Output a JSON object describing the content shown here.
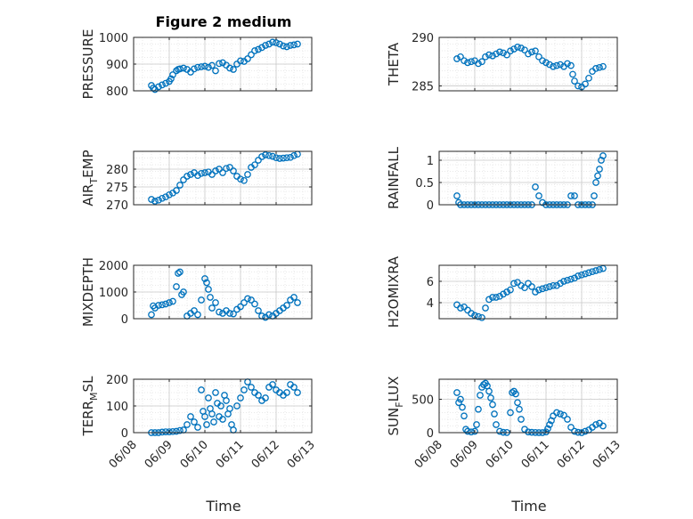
{
  "figure": {
    "title": "Figure 2 medium",
    "xlabel": "Time"
  },
  "colors": {
    "marker": "#0072BD",
    "axis": "#262626",
    "grid": "#c9c9c9"
  },
  "chart_data": [
    {
      "type": "scatter",
      "ylabel_main": "PRESSURE",
      "ylabel_sub": "",
      "ylabel_tail": "",
      "ylim": [
        800,
        1000
      ],
      "yticks": [
        "800",
        "900",
        "1000"
      ],
      "ytick_values": [
        800,
        900,
        1000
      ],
      "xlim": [
        0,
        5
      ],
      "x": [
        0.5,
        0.55,
        0.6,
        0.7,
        0.8,
        0.9,
        1.0,
        1.05,
        1.1,
        1.2,
        1.25,
        1.3,
        1.4,
        1.5,
        1.6,
        1.7,
        1.8,
        1.9,
        2.0,
        2.1,
        2.2,
        2.3,
        2.4,
        2.5,
        2.6,
        2.7,
        2.8,
        2.9,
        3.0,
        3.1,
        3.2,
        3.3,
        3.4,
        3.5,
        3.6,
        3.7,
        3.8,
        3.9,
        4.0,
        4.1,
        4.2,
        4.3,
        4.4,
        4.5,
        4.6
      ],
      "y": [
        820,
        810,
        805,
        815,
        822,
        828,
        835,
        845,
        860,
        875,
        880,
        882,
        885,
        880,
        870,
        882,
        888,
        890,
        892,
        888,
        895,
        875,
        902,
        905,
        896,
        885,
        880,
        900,
        912,
        910,
        920,
        935,
        950,
        955,
        962,
        970,
        975,
        982,
        980,
        975,
        968,
        965,
        970,
        972,
        975
      ]
    },
    {
      "type": "scatter",
      "ylabel_main": "THETA",
      "ylabel_sub": "",
      "ylabel_tail": "",
      "ylim": [
        284.5,
        290
      ],
      "yticks": [
        "285",
        "290"
      ],
      "ytick_values": [
        285,
        290
      ],
      "xlim": [
        0,
        5
      ],
      "x": [
        0.5,
        0.6,
        0.7,
        0.8,
        0.9,
        1.0,
        1.1,
        1.2,
        1.3,
        1.4,
        1.5,
        1.6,
        1.7,
        1.8,
        1.9,
        2.0,
        2.1,
        2.2,
        2.3,
        2.4,
        2.5,
        2.6,
        2.7,
        2.8,
        2.9,
        3.0,
        3.1,
        3.2,
        3.3,
        3.4,
        3.5,
        3.6,
        3.7,
        3.75,
        3.8,
        3.9,
        4.0,
        4.1,
        4.2,
        4.3,
        4.4,
        4.5,
        4.6
      ],
      "y": [
        287.8,
        288.0,
        287.6,
        287.4,
        287.5,
        287.6,
        287.3,
        287.5,
        288.0,
        288.2,
        288.1,
        288.3,
        288.5,
        288.4,
        288.2,
        288.6,
        288.8,
        289.0,
        288.9,
        288.7,
        288.3,
        288.5,
        288.6,
        288.0,
        287.6,
        287.4,
        287.2,
        287.0,
        287.1,
        287.2,
        287.0,
        287.3,
        287.1,
        286.2,
        285.5,
        285.0,
        284.9,
        285.2,
        285.8,
        286.5,
        286.8,
        286.9,
        287.0
      ]
    },
    {
      "type": "scatter",
      "ylabel_main": "AIR",
      "ylabel_sub": "T",
      "ylabel_tail": "EMP",
      "ylim": [
        270,
        285
      ],
      "yticks": [
        "270",
        "275",
        "280"
      ],
      "ytick_values": [
        270,
        275,
        280
      ],
      "xlim": [
        0,
        5
      ],
      "x": [
        0.5,
        0.6,
        0.7,
        0.8,
        0.9,
        1.0,
        1.1,
        1.2,
        1.3,
        1.4,
        1.5,
        1.6,
        1.7,
        1.8,
        1.9,
        2.0,
        2.1,
        2.2,
        2.3,
        2.4,
        2.5,
        2.6,
        2.7,
        2.8,
        2.9,
        3.0,
        3.1,
        3.2,
        3.3,
        3.4,
        3.5,
        3.6,
        3.7,
        3.8,
        3.9,
        4.0,
        4.1,
        4.2,
        4.3,
        4.4,
        4.5,
        4.6
      ],
      "y": [
        271.5,
        271.0,
        271.3,
        271.8,
        272.2,
        272.8,
        273.3,
        274.0,
        275.5,
        277.0,
        278.0,
        278.5,
        279.0,
        278.2,
        278.8,
        279.0,
        279.2,
        278.5,
        279.5,
        280.0,
        279.0,
        280.2,
        280.5,
        279.5,
        278.0,
        277.2,
        276.8,
        278.5,
        280.5,
        281.2,
        282.5,
        283.5,
        284.0,
        283.8,
        283.6,
        283.2,
        283.0,
        283.1,
        283.2,
        283.3,
        283.8,
        284.2
      ]
    },
    {
      "type": "scatter",
      "ylabel_main": "RAINFALL",
      "ylabel_sub": "",
      "ylabel_tail": "",
      "ylim": [
        0,
        1.2
      ],
      "yticks": [
        "0",
        "0.5",
        "1"
      ],
      "ytick_values": [
        0,
        0.5,
        1
      ],
      "xlim": [
        0,
        5
      ],
      "x": [
        0.5,
        0.55,
        0.6,
        0.7,
        0.8,
        0.9,
        1.0,
        1.1,
        1.2,
        1.3,
        1.4,
        1.5,
        1.6,
        1.7,
        1.8,
        1.9,
        2.0,
        2.1,
        2.2,
        2.3,
        2.4,
        2.5,
        2.6,
        2.7,
        2.8,
        2.9,
        3.0,
        3.1,
        3.2,
        3.3,
        3.4,
        3.5,
        3.6,
        3.7,
        3.8,
        3.9,
        4.0,
        4.1,
        4.2,
        4.3,
        4.35,
        4.4,
        4.45,
        4.5,
        4.55,
        4.6
      ],
      "y": [
        0.2,
        0.05,
        0,
        0,
        0,
        0,
        0,
        0,
        0,
        0,
        0,
        0,
        0,
        0,
        0,
        0,
        0,
        0,
        0,
        0,
        0,
        0,
        0,
        0.4,
        0.2,
        0.05,
        0,
        0,
        0,
        0,
        0,
        0,
        0,
        0.2,
        0.2,
        0,
        0,
        0,
        0,
        0,
        0.2,
        0.5,
        0.65,
        0.8,
        1.0,
        1.1
      ]
    },
    {
      "type": "scatter",
      "ylabel_main": "MIXDEPTH",
      "ylabel_sub": "",
      "ylabel_tail": "",
      "ylim": [
        0,
        2000
      ],
      "yticks": [
        "0",
        "1000",
        "2000"
      ],
      "ytick_values": [
        0,
        1000,
        2000
      ],
      "xlim": [
        0,
        5
      ],
      "x": [
        0.5,
        0.55,
        0.6,
        0.7,
        0.8,
        0.9,
        1.0,
        1.1,
        1.2,
        1.25,
        1.3,
        1.35,
        1.4,
        1.5,
        1.6,
        1.7,
        1.8,
        1.9,
        2.0,
        2.05,
        2.1,
        2.15,
        2.2,
        2.3,
        2.4,
        2.5,
        2.6,
        2.7,
        2.8,
        2.9,
        3.0,
        3.1,
        3.2,
        3.3,
        3.4,
        3.5,
        3.6,
        3.7,
        3.8,
        3.9,
        4.0,
        4.1,
        4.2,
        4.3,
        4.4,
        4.5,
        4.6
      ],
      "y": [
        150,
        480,
        400,
        500,
        520,
        550,
        600,
        650,
        1200,
        1700,
        1750,
        900,
        1000,
        100,
        200,
        300,
        150,
        700,
        1500,
        1350,
        1100,
        800,
        400,
        600,
        250,
        200,
        300,
        200,
        180,
        350,
        450,
        600,
        750,
        700,
        550,
        300,
        100,
        50,
        150,
        100,
        200,
        300,
        400,
        500,
        700,
        800,
        600
      ]
    },
    {
      "type": "scatter",
      "ylabel_main": "H2OMIXRA",
      "ylabel_sub": "",
      "ylabel_tail": "",
      "ylim": [
        2.5,
        7.5
      ],
      "yticks": [
        "4",
        "6"
      ],
      "ytick_values": [
        4,
        6
      ],
      "xlim": [
        0,
        5
      ],
      "x": [
        0.5,
        0.6,
        0.7,
        0.8,
        0.9,
        1.0,
        1.1,
        1.2,
        1.3,
        1.4,
        1.5,
        1.6,
        1.7,
        1.8,
        1.9,
        2.0,
        2.1,
        2.2,
        2.3,
        2.4,
        2.5,
        2.6,
        2.7,
        2.8,
        2.9,
        3.0,
        3.1,
        3.2,
        3.3,
        3.4,
        3.5,
        3.6,
        3.7,
        3.8,
        3.9,
        4.0,
        4.1,
        4.2,
        4.3,
        4.4,
        4.5,
        4.6
      ],
      "y": [
        3.8,
        3.5,
        3.6,
        3.3,
        3.0,
        2.8,
        2.7,
        2.6,
        3.5,
        4.3,
        4.5,
        4.5,
        4.6,
        4.8,
        5.0,
        5.2,
        5.8,
        5.9,
        5.6,
        5.4,
        5.8,
        5.5,
        5.0,
        5.2,
        5.3,
        5.4,
        5.5,
        5.6,
        5.6,
        5.8,
        6.0,
        6.1,
        6.2,
        6.3,
        6.5,
        6.6,
        6.7,
        6.8,
        6.9,
        7.0,
        7.1,
        7.2
      ]
    },
    {
      "type": "scatter",
      "ylabel_main": "TERR",
      "ylabel_sub": "M",
      "ylabel_tail": "SL",
      "ylim": [
        0,
        200
      ],
      "yticks": [
        "0",
        "100",
        "200"
      ],
      "ytick_values": [
        0,
        100,
        200
      ],
      "xlim": [
        0,
        5
      ],
      "x": [
        0.5,
        0.6,
        0.7,
        0.8,
        0.9,
        1.0,
        1.1,
        1.2,
        1.3,
        1.4,
        1.5,
        1.6,
        1.7,
        1.8,
        1.9,
        1.95,
        2.0,
        2.05,
        2.1,
        2.15,
        2.2,
        2.25,
        2.3,
        2.35,
        2.4,
        2.45,
        2.5,
        2.55,
        2.6,
        2.65,
        2.7,
        2.75,
        2.8,
        2.9,
        3.0,
        3.1,
        3.2,
        3.3,
        3.4,
        3.5,
        3.6,
        3.7,
        3.8,
        3.9,
        4.0,
        4.1,
        4.2,
        4.3,
        4.4,
        4.5,
        4.6
      ],
      "y": [
        0,
        0,
        0,
        2,
        3,
        3,
        4,
        5,
        8,
        10,
        30,
        60,
        40,
        20,
        160,
        80,
        60,
        30,
        130,
        90,
        70,
        40,
        150,
        110,
        60,
        100,
        50,
        140,
        120,
        70,
        90,
        30,
        10,
        100,
        130,
        160,
        190,
        170,
        150,
        140,
        120,
        130,
        170,
        180,
        160,
        150,
        140,
        150,
        180,
        170,
        150
      ]
    },
    {
      "type": "scatter",
      "ylabel_main": "SUN",
      "ylabel_sub": "F",
      "ylabel_tail": "LUX",
      "ylim": [
        0,
        800
      ],
      "yticks": [
        "0",
        "500"
      ],
      "ytick_values": [
        0,
        500
      ],
      "xlim": [
        0,
        5
      ],
      "x": [
        0.5,
        0.55,
        0.6,
        0.65,
        0.7,
        0.75,
        0.8,
        0.9,
        1.0,
        1.05,
        1.1,
        1.15,
        1.2,
        1.25,
        1.3,
        1.35,
        1.4,
        1.45,
        1.5,
        1.55,
        1.6,
        1.7,
        1.8,
        1.9,
        2.0,
        2.05,
        2.1,
        2.15,
        2.2,
        2.25,
        2.3,
        2.4,
        2.5,
        2.6,
        2.7,
        2.8,
        2.9,
        3.0,
        3.05,
        3.1,
        3.15,
        3.2,
        3.3,
        3.4,
        3.5,
        3.6,
        3.7,
        3.8,
        3.9,
        4.0,
        4.1,
        4.2,
        4.3,
        4.4,
        4.5,
        4.6
      ],
      "y": [
        600,
        450,
        500,
        380,
        250,
        50,
        20,
        10,
        20,
        120,
        350,
        560,
        680,
        720,
        740,
        700,
        620,
        520,
        420,
        280,
        120,
        20,
        5,
        2,
        300,
        600,
        620,
        580,
        450,
        350,
        200,
        50,
        10,
        5,
        2,
        0,
        0,
        10,
        60,
        120,
        180,
        250,
        300,
        280,
        260,
        200,
        80,
        20,
        5,
        0,
        20,
        40,
        80,
        120,
        140,
        100
      ]
    }
  ],
  "xaxis": {
    "ticks": [
      "06/08",
      "06/09",
      "06/10",
      "06/11",
      "06/12",
      "06/13"
    ],
    "tick_values": [
      0,
      1,
      2,
      3,
      4,
      5
    ]
  }
}
